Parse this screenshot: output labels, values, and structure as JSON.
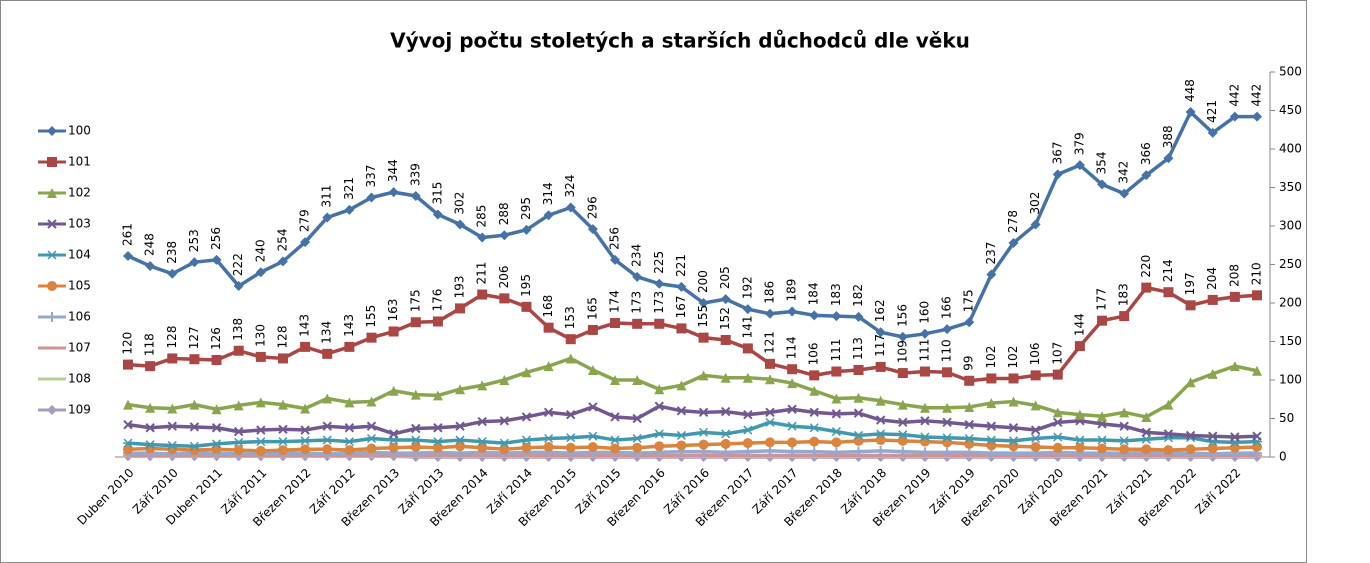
{
  "chart_data": {
    "type": "line",
    "title": "Vývoj počtu stoletých a starších důchodců dle věku",
    "categories": [
      "Duben 2010",
      null,
      "Září 2010",
      null,
      "Duben 2011",
      null,
      "Září 2011",
      null,
      "Březen 2012",
      null,
      "Září 2012",
      null,
      "Březen 2013",
      null,
      "Září 2013",
      null,
      "Březen 2014",
      null,
      "Září 2014",
      null,
      "Březen 2015",
      null,
      "Září 2015",
      null,
      "Březen 2016",
      null,
      "Září 2016",
      null,
      "Březen 2017",
      null,
      "Září 2017",
      null,
      "Březen 2018",
      null,
      "Září 2018",
      null,
      "Březen 2019",
      null,
      "Září 2019",
      null,
      "Březen 2020",
      null,
      "Září 2020",
      null,
      "Březen 2021",
      null,
      "Září 2021",
      null,
      "Březen 2022",
      null,
      "Září 2022",
      null
    ],
    "ylim": [
      0,
      500
    ],
    "yticks": [
      0,
      50,
      100,
      150,
      200,
      250,
      300,
      350,
      400,
      450,
      500
    ],
    "y_axis_side": "right",
    "legend": "left",
    "series": [
      {
        "name": "100",
        "color": "#4572a7",
        "marker": "diamond",
        "data_labels": true,
        "values": [
          261,
          248,
          238,
          253,
          256,
          222,
          240,
          254,
          279,
          311,
          321,
          337,
          344,
          339,
          315,
          302,
          285,
          288,
          295,
          314,
          324,
          296,
          256,
          234,
          225,
          221,
          200,
          205,
          192,
          186,
          189,
          184,
          183,
          182,
          162,
          156,
          160,
          166,
          175,
          237,
          278,
          302,
          367,
          379,
          354,
          342,
          366,
          388,
          448,
          421,
          442,
          442
        ]
      },
      {
        "name": "101",
        "color": "#aa4643",
        "marker": "square",
        "data_labels": true,
        "values": [
          120,
          118,
          128,
          127,
          126,
          138,
          130,
          128,
          143,
          134,
          143,
          155,
          163,
          175,
          176,
          193,
          211,
          206,
          195,
          168,
          153,
          165,
          174,
          173,
          173,
          167,
          155,
          152,
          141,
          121,
          114,
          106,
          111,
          113,
          117,
          109,
          111,
          110,
          99,
          102,
          102,
          106,
          107,
          144,
          177,
          183,
          220,
          214,
          197,
          204,
          208,
          210
        ]
      },
      {
        "name": "102",
        "color": "#89a54e",
        "marker": "triangle",
        "values": [
          68,
          64,
          63,
          68,
          62,
          67,
          71,
          68,
          63,
          76,
          71,
          72,
          86,
          81,
          80,
          88,
          93,
          100,
          110,
          118,
          128,
          113,
          100,
          100,
          88,
          93,
          106,
          103,
          103,
          101,
          96,
          86,
          76,
          77,
          73,
          68,
          64,
          64,
          65,
          70,
          72,
          67,
          58,
          55,
          53,
          58,
          52,
          68,
          97,
          108,
          118,
          112
        ]
      },
      {
        "name": "103",
        "color": "#71588f",
        "marker": "x",
        "values": [
          42,
          38,
          40,
          39,
          38,
          33,
          35,
          36,
          35,
          40,
          38,
          40,
          30,
          37,
          38,
          40,
          46,
          47,
          52,
          58,
          55,
          65,
          52,
          50,
          66,
          60,
          58,
          59,
          55,
          58,
          62,
          58,
          56,
          57,
          48,
          45,
          47,
          45,
          42,
          40,
          38,
          35,
          45,
          47,
          43,
          40,
          32,
          30,
          28,
          27,
          26,
          27
        ]
      },
      {
        "name": "104",
        "color": "#4198af",
        "marker": "star",
        "values": [
          18,
          16,
          15,
          14,
          17,
          19,
          20,
          20,
          21,
          22,
          20,
          24,
          22,
          22,
          20,
          22,
          20,
          18,
          22,
          24,
          25,
          27,
          22,
          24,
          30,
          28,
          32,
          30,
          35,
          45,
          40,
          38,
          33,
          28,
          30,
          29,
          26,
          25,
          24,
          22,
          21,
          24,
          26,
          22,
          22,
          21,
          23,
          25,
          25,
          20,
          19,
          20
        ]
      },
      {
        "name": "105",
        "color": "#db843d",
        "marker": "circle",
        "values": [
          10,
          11,
          10,
          9,
          10,
          9,
          8,
          9,
          10,
          10,
          9,
          11,
          12,
          13,
          12,
          14,
          12,
          10,
          12,
          13,
          12,
          13,
          11,
          12,
          14,
          15,
          16,
          17,
          18,
          19,
          19,
          20,
          19,
          21,
          22,
          21,
          20,
          19,
          17,
          15,
          14,
          13,
          12,
          12,
          11,
          10,
          10,
          9,
          10,
          11,
          12,
          13
        ]
      },
      {
        "name": "106",
        "color": "#93a9cf",
        "marker": "plus",
        "values": [
          5,
          5,
          4,
          5,
          5,
          4,
          4,
          5,
          5,
          4,
          5,
          6,
          5,
          5,
          6,
          5,
          6,
          5,
          6,
          6,
          5,
          6,
          6,
          5,
          6,
          7,
          7,
          6,
          7,
          8,
          7,
          7,
          6,
          7,
          8,
          7,
          6,
          6,
          6,
          5,
          5,
          5,
          6,
          5,
          5,
          5,
          6,
          5,
          5,
          4,
          5,
          5
        ]
      },
      {
        "name": "107",
        "color": "#d19392",
        "marker": "dash",
        "values": [
          2,
          2,
          2,
          2,
          2,
          2,
          2,
          2,
          2,
          2,
          2,
          2,
          2,
          2,
          2,
          2,
          2,
          2,
          2,
          2,
          2,
          2,
          2,
          2,
          2,
          2,
          2,
          2,
          2,
          2,
          2,
          2,
          2,
          2,
          2,
          2,
          2,
          2,
          2,
          2,
          2,
          2,
          2,
          2,
          2,
          2,
          2,
          2,
          2,
          2,
          2,
          2
        ]
      },
      {
        "name": "108",
        "color": "#b9cd96",
        "marker": "dash",
        "values": [
          1,
          1,
          1,
          1,
          1,
          1,
          1,
          1,
          1,
          1,
          1,
          1,
          1,
          1,
          1,
          1,
          1,
          1,
          1,
          1,
          1,
          1,
          1,
          1,
          1,
          1,
          1,
          1,
          1,
          1,
          1,
          1,
          1,
          1,
          1,
          1,
          1,
          1,
          1,
          1,
          1,
          1,
          1,
          1,
          1,
          1,
          1,
          1,
          1,
          1,
          1,
          1
        ]
      },
      {
        "name": "109",
        "color": "#a99bbd",
        "marker": "diamond",
        "values": [
          1,
          1,
          1,
          1,
          1,
          1,
          1,
          1,
          1,
          1,
          1,
          1,
          1,
          0,
          0,
          0,
          0,
          0,
          0,
          0,
          0,
          0,
          0,
          0,
          0,
          0,
          0,
          0,
          0,
          0,
          0,
          0,
          0,
          0,
          0,
          0,
          0,
          0,
          0,
          0,
          0,
          0,
          0,
          0,
          0,
          0,
          0,
          0,
          0,
          0,
          0,
          0
        ]
      }
    ]
  }
}
